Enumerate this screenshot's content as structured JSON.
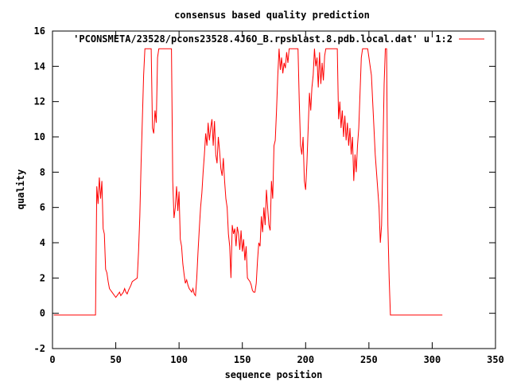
{
  "chart_data": {
    "type": "line",
    "title": "consensus based quality prediction",
    "xlabel": "sequence position",
    "ylabel": "quality",
    "xlim": [
      0,
      350
    ],
    "ylim": [
      -2,
      16
    ],
    "xticks": [
      0,
      50,
      100,
      150,
      200,
      250,
      300,
      350
    ],
    "yticks": [
      -2,
      0,
      2,
      4,
      6,
      8,
      10,
      12,
      14,
      16
    ],
    "grid": false,
    "legend_position": "top-right",
    "series": [
      {
        "name": "'PCONSMETA/23528/pcons23528.4J6O_B.rpsblast.8.pdb.local.dat' u 1:2",
        "color": "#ff0000",
        "points": [
          [
            1,
            -0.1
          ],
          [
            34,
            -0.1
          ],
          [
            35,
            7.2
          ],
          [
            36,
            6.2
          ],
          [
            37,
            7.7
          ],
          [
            38,
            6.5
          ],
          [
            39,
            7.5
          ],
          [
            40,
            4.8
          ],
          [
            41,
            4.5
          ],
          [
            42,
            2.5
          ],
          [
            43,
            2.3
          ],
          [
            44,
            1.8
          ],
          [
            45,
            1.4
          ],
          [
            46,
            1.3
          ],
          [
            47,
            1.2
          ],
          [
            48,
            1.1
          ],
          [
            49,
            1.0
          ],
          [
            50,
            0.9
          ],
          [
            52,
            1.1
          ],
          [
            53,
            1.2
          ],
          [
            54,
            1.0
          ],
          [
            56,
            1.2
          ],
          [
            57,
            1.4
          ],
          [
            58,
            1.2
          ],
          [
            59,
            1.1
          ],
          [
            60,
            1.3
          ],
          [
            62,
            1.6
          ],
          [
            63,
            1.8
          ],
          [
            65,
            1.9
          ],
          [
            67,
            2.0
          ],
          [
            68,
            3.5
          ],
          [
            69,
            5.5
          ],
          [
            70,
            8.5
          ],
          [
            71,
            11
          ],
          [
            72,
            13.5
          ],
          [
            73,
            15
          ],
          [
            78,
            15
          ],
          [
            79,
            10.5
          ],
          [
            80,
            10.2
          ],
          [
            81,
            11.5
          ],
          [
            82,
            10.8
          ],
          [
            83,
            14.5
          ],
          [
            84,
            15
          ],
          [
            94,
            15
          ],
          [
            95,
            7.5
          ],
          [
            96,
            5.4
          ],
          [
            97,
            6.0
          ],
          [
            98,
            7.2
          ],
          [
            99,
            5.8
          ],
          [
            100,
            6.9
          ],
          [
            101,
            4.2
          ],
          [
            102,
            3.8
          ],
          [
            103,
            2.8
          ],
          [
            104,
            2.2
          ],
          [
            105,
            1.7
          ],
          [
            106,
            1.9
          ],
          [
            107,
            1.6
          ],
          [
            108,
            1.4
          ],
          [
            109,
            1.3
          ],
          [
            110,
            1.2
          ],
          [
            111,
            1.4
          ],
          [
            112,
            1.1
          ],
          [
            113,
            1.0
          ],
          [
            114,
            2.0
          ],
          [
            115,
            3.5
          ],
          [
            116,
            4.8
          ],
          [
            117,
            6.0
          ],
          [
            118,
            6.8
          ],
          [
            119,
            8.0
          ],
          [
            120,
            9.0
          ],
          [
            121,
            10.2
          ],
          [
            122,
            9.5
          ],
          [
            123,
            10.8
          ],
          [
            124,
            9.8
          ],
          [
            125,
            10.5
          ],
          [
            126,
            11.0
          ],
          [
            127,
            9.5
          ],
          [
            128,
            10.9
          ],
          [
            129,
            9.0
          ],
          [
            130,
            8.5
          ],
          [
            131,
            10.0
          ],
          [
            132,
            9.2
          ],
          [
            133,
            8.2
          ],
          [
            134,
            7.8
          ],
          [
            135,
            8.8
          ],
          [
            136,
            7.5
          ],
          [
            137,
            6.5
          ],
          [
            138,
            6.0
          ],
          [
            139,
            4.5
          ],
          [
            140,
            3.8
          ],
          [
            141,
            2.0
          ],
          [
            142,
            5.0
          ],
          [
            143,
            4.5
          ],
          [
            144,
            4.8
          ],
          [
            145,
            3.8
          ],
          [
            146,
            4.9
          ],
          [
            147,
            4.5
          ],
          [
            148,
            3.6
          ],
          [
            149,
            4.7
          ],
          [
            150,
            3.5
          ],
          [
            151,
            4.2
          ],
          [
            152,
            3.0
          ],
          [
            153,
            3.8
          ],
          [
            154,
            2.0
          ],
          [
            155,
            1.9
          ],
          [
            156,
            1.8
          ],
          [
            157,
            1.6
          ],
          [
            158,
            1.3
          ],
          [
            159,
            1.2
          ],
          [
            160,
            1.2
          ],
          [
            161,
            1.7
          ],
          [
            162,
            3.0
          ],
          [
            163,
            4.0
          ],
          [
            164,
            3.8
          ],
          [
            165,
            5.5
          ],
          [
            166,
            4.6
          ],
          [
            167,
            6.0
          ],
          [
            168,
            5.0
          ],
          [
            169,
            7.0
          ],
          [
            170,
            6.0
          ],
          [
            171,
            5.0
          ],
          [
            172,
            4.7
          ],
          [
            173,
            7.5
          ],
          [
            174,
            6.5
          ],
          [
            175,
            9.5
          ],
          [
            176,
            9.8
          ],
          [
            177,
            11.5
          ],
          [
            178,
            13.5
          ],
          [
            179,
            15
          ],
          [
            180,
            13.8
          ],
          [
            181,
            14.5
          ],
          [
            182,
            13.6
          ],
          [
            183,
            14.2
          ],
          [
            184,
            13.9
          ],
          [
            185,
            14.8
          ],
          [
            186,
            14.2
          ],
          [
            187,
            15
          ],
          [
            194,
            15
          ],
          [
            195,
            12.0
          ],
          [
            196,
            9.5
          ],
          [
            197,
            9.0
          ],
          [
            198,
            10.0
          ],
          [
            199,
            7.5
          ],
          [
            200,
            7.0
          ],
          [
            201,
            8.5
          ],
          [
            202,
            10.5
          ],
          [
            203,
            12.5
          ],
          [
            204,
            11.5
          ],
          [
            205,
            12.8
          ],
          [
            206,
            13.5
          ],
          [
            207,
            15
          ],
          [
            208,
            14.0
          ],
          [
            209,
            14.5
          ],
          [
            210,
            12.8
          ],
          [
            211,
            14.8
          ],
          [
            212,
            13.0
          ],
          [
            213,
            14.2
          ],
          [
            214,
            13.2
          ],
          [
            215,
            14.6
          ],
          [
            216,
            15
          ],
          [
            225,
            15
          ],
          [
            226,
            11.0
          ],
          [
            227,
            12.0
          ],
          [
            228,
            10.5
          ],
          [
            229,
            11.5
          ],
          [
            230,
            10.0
          ],
          [
            231,
            11.2
          ],
          [
            232,
            9.8
          ],
          [
            233,
            10.8
          ],
          [
            234,
            9.5
          ],
          [
            235,
            10.5
          ],
          [
            236,
            9.0
          ],
          [
            237,
            10.0
          ],
          [
            238,
            7.5
          ],
          [
            239,
            9.0
          ],
          [
            240,
            8.0
          ],
          [
            241,
            9.5
          ],
          [
            242,
            10.5
          ],
          [
            243,
            12.5
          ],
          [
            244,
            14.5
          ],
          [
            245,
            15
          ],
          [
            249,
            15
          ],
          [
            250,
            14.5
          ],
          [
            251,
            14.0
          ],
          [
            252,
            13.5
          ],
          [
            253,
            12.0
          ],
          [
            254,
            10.5
          ],
          [
            255,
            9.0
          ],
          [
            256,
            8.0
          ],
          [
            257,
            7.0
          ],
          [
            258,
            6.0
          ],
          [
            259,
            4.0
          ],
          [
            260,
            5.0
          ],
          [
            261,
            9.0
          ],
          [
            262,
            13.0
          ],
          [
            263,
            15
          ],
          [
            264,
            15
          ],
          [
            265,
            5.0
          ],
          [
            266,
            2.0
          ],
          [
            267,
            -0.1
          ],
          [
            308,
            -0.1
          ]
        ]
      }
    ]
  }
}
